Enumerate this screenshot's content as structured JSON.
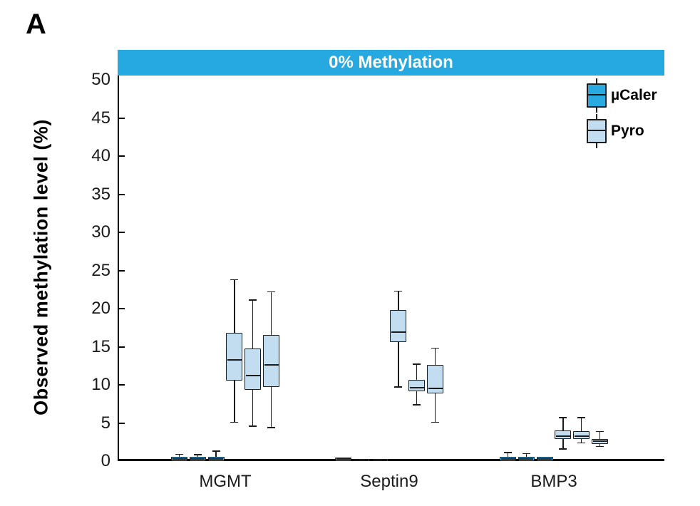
{
  "panel_label": "A",
  "banner": {
    "title": "0% Methylation",
    "bg_color": "#25A9E0",
    "text_color": "#FFFFFF"
  },
  "legend": [
    {
      "label": "µCaler",
      "color": "#29ABE2"
    },
    {
      "label": "Pyro",
      "color": "#C2DCF0"
    }
  ],
  "chart_data": {
    "type": "boxplot",
    "title": "0% Methylation",
    "xlabel": "",
    "ylabel": "Observed methylation level (%)",
    "ylim": [
      0,
      50
    ],
    "y_ticks": [
      0,
      5,
      10,
      15,
      20,
      25,
      30,
      35,
      40,
      45,
      50
    ],
    "grid": false,
    "legend_position": "top-right-inside",
    "categories": [
      "MGMT",
      "Septin9",
      "BMP3"
    ],
    "replicates_per_category": 3,
    "box_values_format": [
      "low",
      "q1",
      "median",
      "q3",
      "high"
    ],
    "series": [
      {
        "name": "µCaler",
        "color": "#29ABE2",
        "data": [
          [
            [
              0,
              0,
              0.3,
              0.55,
              0.9
            ],
            [
              0,
              0,
              0.3,
              0.55,
              0.85
            ],
            [
              0,
              0,
              0.3,
              0.55,
              1.3
            ]
          ],
          [
            [
              0,
              0,
              0.25,
              0.5,
              0.5
            ],
            [
              0,
              0,
              0.15,
              0.3,
              0.3
            ],
            [
              0,
              0,
              0.15,
              0.3,
              0.3
            ]
          ],
          [
            [
              0,
              0,
              0.3,
              0.6,
              1.1
            ],
            [
              0,
              0,
              0.3,
              0.55,
              1.0
            ],
            [
              0,
              0,
              0.3,
              0.55,
              0.55
            ]
          ]
        ]
      },
      {
        "name": "Pyro",
        "color": "#C2DCF0",
        "data": [
          [
            [
              5.1,
              10.6,
              13.3,
              16.8,
              23.8
            ],
            [
              4.6,
              9.3,
              11.2,
              14.8,
              21.1
            ],
            [
              4.4,
              9.7,
              12.6,
              16.5,
              22.2
            ]
          ],
          [
            [
              9.7,
              15.6,
              16.9,
              19.8,
              22.3
            ],
            [
              7.4,
              9.2,
              9.6,
              10.7,
              12.7
            ],
            [
              5.1,
              8.9,
              9.5,
              12.6,
              14.8
            ]
          ],
          [
            [
              1.6,
              2.9,
              3.3,
              4.0,
              5.7
            ],
            [
              2.4,
              2.9,
              3.3,
              3.9,
              5.7
            ],
            [
              1.9,
              2.2,
              2.6,
              2.9,
              3.9
            ]
          ]
        ]
      }
    ]
  }
}
